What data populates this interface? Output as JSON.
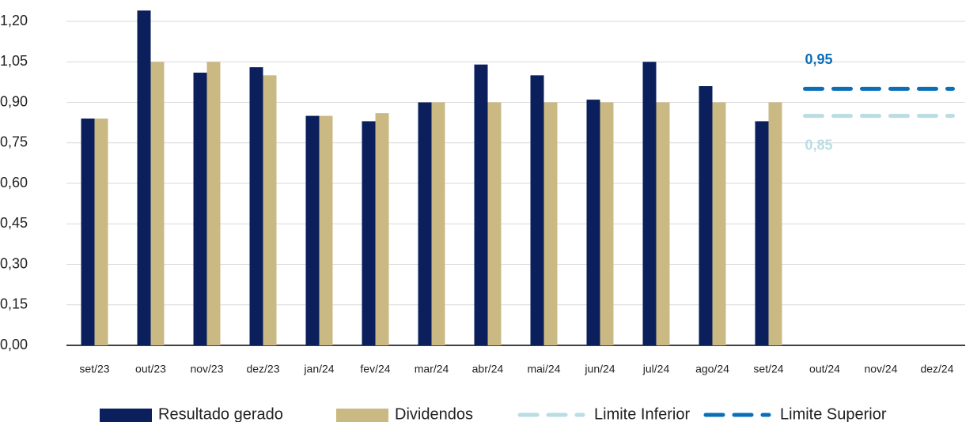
{
  "chart_data": {
    "type": "bar",
    "categories": [
      "set/23",
      "out/23",
      "nov/23",
      "dez/23",
      "jan/24",
      "fev/24",
      "mar/24",
      "abr/24",
      "mai/24",
      "jun/24",
      "jul/24",
      "ago/24",
      "set/24",
      "out/24",
      "nov/24",
      "dez/24"
    ],
    "series": [
      {
        "name": "Resultado gerado",
        "type": "bar",
        "color": "#0a1f5c",
        "values": [
          0.84,
          1.24,
          1.01,
          1.03,
          0.85,
          0.83,
          0.9,
          1.04,
          1.0,
          0.91,
          1.05,
          0.96,
          0.83,
          null,
          null,
          null
        ]
      },
      {
        "name": "Dividendos",
        "type": "bar",
        "color": "#cbb984",
        "values": [
          0.84,
          1.05,
          1.05,
          1.0,
          0.85,
          0.86,
          0.9,
          0.9,
          0.9,
          0.9,
          0.9,
          0.9,
          0.9,
          null,
          null,
          null
        ]
      },
      {
        "name": "Limite Inferior",
        "type": "line",
        "dashed": true,
        "color": "#b9dde3",
        "values": [
          null,
          null,
          null,
          null,
          null,
          null,
          null,
          null,
          null,
          null,
          null,
          null,
          null,
          0.85,
          0.85,
          0.85
        ],
        "value_labels": [
          null,
          null,
          null,
          null,
          null,
          null,
          null,
          null,
          null,
          null,
          null,
          null,
          null,
          "0,85",
          null,
          null
        ],
        "label_position": "below"
      },
      {
        "name": "Limite Superior",
        "type": "line",
        "dashed": true,
        "color": "#0b6fb8",
        "values": [
          null,
          null,
          null,
          null,
          null,
          null,
          null,
          null,
          null,
          null,
          null,
          null,
          null,
          0.95,
          0.95,
          0.95
        ],
        "value_labels": [
          null,
          null,
          null,
          null,
          null,
          null,
          null,
          null,
          null,
          null,
          null,
          null,
          null,
          "0,95",
          null,
          null
        ],
        "label_position": "above"
      }
    ],
    "ylim": [
      0,
      1.2
    ],
    "yticks": [
      {
        "value": 0,
        "label": "0,00"
      },
      {
        "value": 0.15,
        "label": "0,15"
      },
      {
        "value": 0.3,
        "label": "0,30"
      },
      {
        "value": 0.45,
        "label": "0,45"
      },
      {
        "value": 0.6,
        "label": "0,60"
      },
      {
        "value": 0.75,
        "label": "0,75"
      },
      {
        "value": 0.9,
        "label": "0,90"
      },
      {
        "value": 1.05,
        "label": "1,05"
      },
      {
        "value": 1.2,
        "label": "1,20"
      }
    ],
    "grid": true,
    "legend": "bottom"
  }
}
